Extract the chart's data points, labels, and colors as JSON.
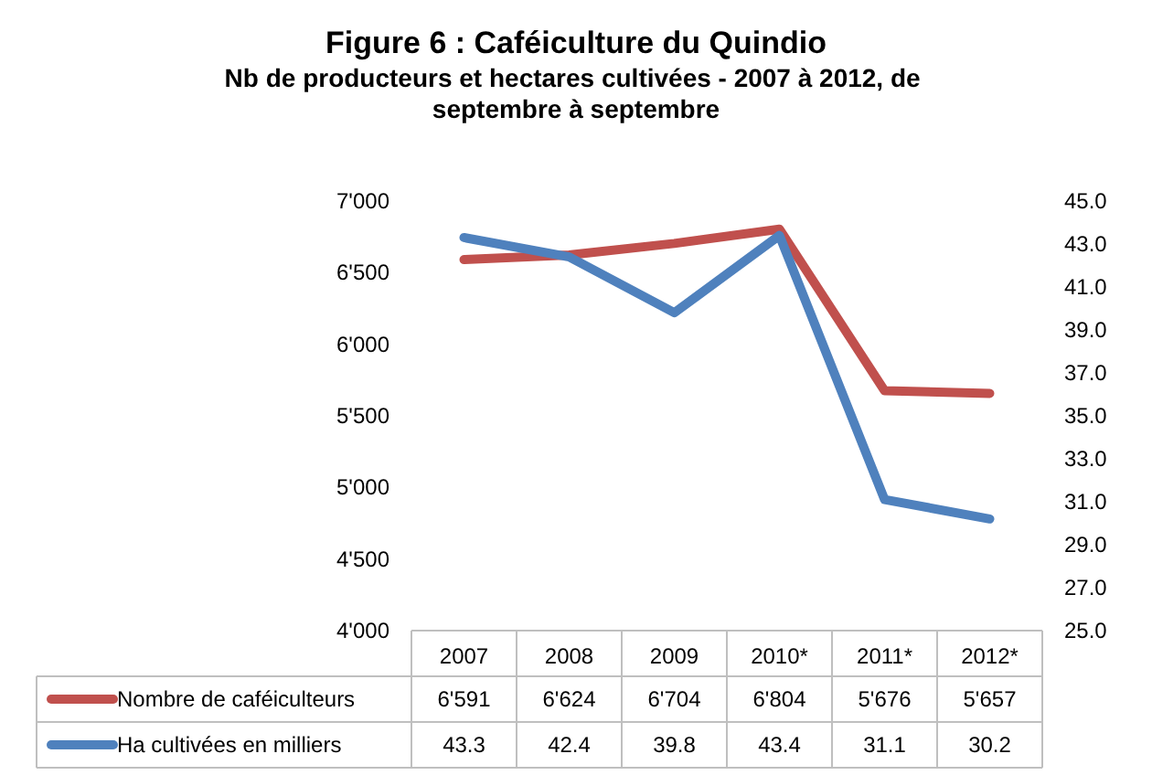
{
  "chart_data": {
    "type": "line",
    "title": "Figure 6 : Caféiculture du Quindio",
    "subtitle": "Nb de producteurs et hectares cultivées - 2007 à 2012, de septembre à septembre",
    "categories": [
      "2007",
      "2008",
      "2009",
      "2010*",
      "2011*",
      "2012*"
    ],
    "series": [
      {
        "name": "Nombre de caféiculteurs",
        "color": "#c0504d",
        "values": [
          6591,
          6624,
          6704,
          6804,
          5676,
          5657
        ],
        "value_labels": [
          "6'591",
          "6'624",
          "6'704",
          "6'804",
          "5'676",
          "5'657"
        ]
      },
      {
        "name": "Ha cultivées en milliers",
        "color": "#4f81bd",
        "axis": "y2",
        "values": [
          43.3,
          42.4,
          39.8,
          43.4,
          31.1,
          30.2
        ],
        "value_labels": [
          "43.3",
          "42.4",
          "39.8",
          "43.4",
          "31.1",
          "30.2"
        ]
      }
    ],
    "ylim": [
      4000,
      7000
    ],
    "yticks": [
      {
        "value": 4000,
        "label": "4'000"
      },
      {
        "value": 4500,
        "label": "4'500"
      },
      {
        "value": 5000,
        "label": "5'000"
      },
      {
        "value": 5500,
        "label": "5'500"
      },
      {
        "value": 6000,
        "label": "6'000"
      },
      {
        "value": 6500,
        "label": "6'500"
      },
      {
        "value": 7000,
        "label": "7'000"
      }
    ],
    "y2lim": [
      25,
      45
    ],
    "y2ticks": [
      {
        "value": 25,
        "label": "25.0"
      },
      {
        "value": 27,
        "label": "27.0"
      },
      {
        "value": 29,
        "label": "29.0"
      },
      {
        "value": 31,
        "label": "31.0"
      },
      {
        "value": 33,
        "label": "33.0"
      },
      {
        "value": 35,
        "label": "35.0"
      },
      {
        "value": 37,
        "label": "37.0"
      },
      {
        "value": 39,
        "label": "39.0"
      },
      {
        "value": 41,
        "label": "41.0"
      },
      {
        "value": 43,
        "label": "43.0"
      },
      {
        "value": 45,
        "label": "45.0"
      }
    ],
    "grid": false,
    "legend": "bottom",
    "marker": "none",
    "line_style": "solid"
  }
}
